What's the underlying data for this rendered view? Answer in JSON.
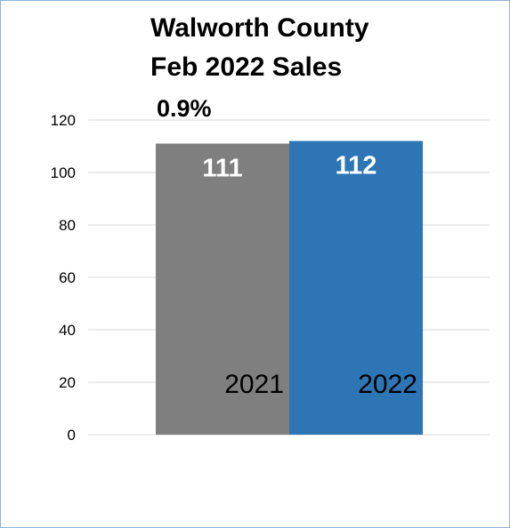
{
  "chart_data": {
    "type": "bar",
    "title": "Walworth County",
    "subtitle": "Feb 2022 Sales",
    "annotation": "0.9%",
    "categories": [
      "2021",
      "2022"
    ],
    "values": [
      111,
      112
    ],
    "value_labels": [
      "111",
      "112"
    ],
    "colors": [
      "#7f7f7f",
      "#2e75b6"
    ],
    "ylim": [
      0,
      120
    ],
    "yticks": [
      "0",
      "20",
      "40",
      "60",
      "80",
      "100",
      "120"
    ],
    "grid": true,
    "legend": "none",
    "xlabel": "",
    "ylabel": ""
  }
}
